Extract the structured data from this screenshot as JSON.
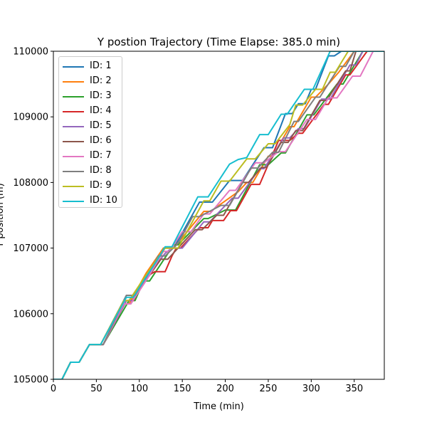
{
  "chart_data": {
    "type": "line",
    "title": "Y postion Trajectory (Time Elapse: 385.0 min)",
    "xlabel": "Time (min)",
    "ylabel": "Y position (m)",
    "xlim": [
      0,
      385
    ],
    "ylim": [
      105000,
      110000
    ],
    "xticks": [
      0,
      50,
      100,
      150,
      200,
      250,
      300,
      350
    ],
    "yticks": [
      105000,
      106000,
      107000,
      108000,
      109000,
      110000
    ],
    "grid": false,
    "legend_position": "upper-left",
    "series": [
      {
        "name": "ID: 1",
        "color": "#1f77b4",
        "points": [
          [
            0,
            105000
          ],
          [
            10,
            105000
          ],
          [
            20,
            105260
          ],
          [
            30,
            105260
          ],
          [
            42,
            105530
          ],
          [
            55,
            105530
          ],
          [
            85,
            106280
          ],
          [
            95,
            106280
          ],
          [
            110,
            106620
          ],
          [
            128,
            107000
          ],
          [
            140,
            107000
          ],
          [
            170,
            107700
          ],
          [
            185,
            107700
          ],
          [
            205,
            108030
          ],
          [
            220,
            108030
          ],
          [
            245,
            108530
          ],
          [
            255,
            108530
          ],
          [
            270,
            109050
          ],
          [
            278,
            109050
          ],
          [
            285,
            109200
          ],
          [
            293,
            109200
          ],
          [
            300,
            109420
          ],
          [
            305,
            109420
          ],
          [
            320,
            109930
          ],
          [
            327,
            109930
          ],
          [
            335,
            110000
          ],
          [
            385,
            110000
          ]
        ]
      },
      {
        "name": "ID: 2",
        "color": "#ff7f0e",
        "points": [
          [
            0,
            105000
          ],
          [
            10,
            105000
          ],
          [
            20,
            105260
          ],
          [
            30,
            105260
          ],
          [
            42,
            105530
          ],
          [
            55,
            105530
          ],
          [
            80,
            106150
          ],
          [
            88,
            106150
          ],
          [
            108,
            106620
          ],
          [
            128,
            107000
          ],
          [
            140,
            107000
          ],
          [
            175,
            107560
          ],
          [
            183,
            107560
          ],
          [
            215,
            107860
          ],
          [
            225,
            108000
          ],
          [
            232,
            108000
          ],
          [
            250,
            108400
          ],
          [
            255,
            108400
          ],
          [
            275,
            108850
          ],
          [
            280,
            108850
          ],
          [
            300,
            109300
          ],
          [
            305,
            109300
          ],
          [
            320,
            109500
          ],
          [
            332,
            109680
          ],
          [
            350,
            110000
          ],
          [
            385,
            110000
          ]
        ]
      },
      {
        "name": "ID: 3",
        "color": "#2ca02c",
        "points": [
          [
            0,
            105000
          ],
          [
            10,
            105000
          ],
          [
            20,
            105260
          ],
          [
            30,
            105260
          ],
          [
            42,
            105530
          ],
          [
            58,
            105530
          ],
          [
            88,
            106200
          ],
          [
            95,
            106200
          ],
          [
            105,
            106500
          ],
          [
            112,
            106500
          ],
          [
            140,
            107050
          ],
          [
            145,
            107050
          ],
          [
            175,
            107450
          ],
          [
            180,
            107450
          ],
          [
            200,
            107580
          ],
          [
            212,
            107580
          ],
          [
            240,
            108270
          ],
          [
            250,
            108270
          ],
          [
            265,
            108450
          ],
          [
            270,
            108450
          ],
          [
            295,
            109030
          ],
          [
            303,
            109030
          ],
          [
            330,
            109500
          ],
          [
            337,
            109500
          ],
          [
            360,
            110000
          ],
          [
            385,
            110000
          ]
        ]
      },
      {
        "name": "ID: 4",
        "color": "#d62728",
        "points": [
          [
            0,
            105000
          ],
          [
            10,
            105000
          ],
          [
            20,
            105260
          ],
          [
            30,
            105260
          ],
          [
            42,
            105530
          ],
          [
            58,
            105530
          ],
          [
            85,
            106200
          ],
          [
            93,
            106200
          ],
          [
            110,
            106580
          ],
          [
            118,
            106640
          ],
          [
            130,
            106640
          ],
          [
            138,
            106880
          ],
          [
            143,
            107000
          ],
          [
            148,
            107000
          ],
          [
            170,
            107310
          ],
          [
            180,
            107310
          ],
          [
            185,
            107420
          ],
          [
            198,
            107420
          ],
          [
            206,
            107570
          ],
          [
            213,
            107570
          ],
          [
            230,
            107970
          ],
          [
            240,
            107970
          ],
          [
            262,
            108640
          ],
          [
            275,
            108640
          ],
          [
            285,
            108750
          ],
          [
            290,
            108750
          ],
          [
            315,
            109190
          ],
          [
            320,
            109190
          ],
          [
            340,
            109640
          ],
          [
            345,
            109640
          ],
          [
            365,
            110000
          ],
          [
            385,
            110000
          ]
        ]
      },
      {
        "name": "ID: 5",
        "color": "#9467bd",
        "points": [
          [
            0,
            105000
          ],
          [
            10,
            105000
          ],
          [
            20,
            105260
          ],
          [
            30,
            105260
          ],
          [
            42,
            105530
          ],
          [
            58,
            105530
          ],
          [
            85,
            106200
          ],
          [
            92,
            106200
          ],
          [
            112,
            106620
          ],
          [
            130,
            106920
          ],
          [
            138,
            107000
          ],
          [
            150,
            107000
          ],
          [
            175,
            107400
          ],
          [
            182,
            107400
          ],
          [
            208,
            107760
          ],
          [
            215,
            107760
          ],
          [
            240,
            108210
          ],
          [
            245,
            108210
          ],
          [
            268,
            108680
          ],
          [
            275,
            108680
          ],
          [
            285,
            108820
          ],
          [
            292,
            108820
          ],
          [
            312,
            109270
          ],
          [
            322,
            109270
          ],
          [
            345,
            109790
          ],
          [
            352,
            109790
          ],
          [
            360,
            110000
          ],
          [
            385,
            110000
          ]
        ]
      },
      {
        "name": "ID: 6",
        "color": "#8c564b",
        "points": [
          [
            0,
            105000
          ],
          [
            10,
            105000
          ],
          [
            20,
            105260
          ],
          [
            30,
            105260
          ],
          [
            42,
            105530
          ],
          [
            58,
            105530
          ],
          [
            82,
            106150
          ],
          [
            90,
            106150
          ],
          [
            110,
            106550
          ],
          [
            125,
            106830
          ],
          [
            133,
            106830
          ],
          [
            155,
            107140
          ],
          [
            165,
            107280
          ],
          [
            173,
            107280
          ],
          [
            190,
            107500
          ],
          [
            198,
            107500
          ],
          [
            220,
            108000
          ],
          [
            227,
            108000
          ],
          [
            242,
            108230
          ],
          [
            248,
            108230
          ],
          [
            265,
            108610
          ],
          [
            273,
            108610
          ],
          [
            282,
            108790
          ],
          [
            290,
            108790
          ],
          [
            310,
            109250
          ],
          [
            318,
            109250
          ],
          [
            340,
            109700
          ],
          [
            345,
            109700
          ],
          [
            352,
            110000
          ],
          [
            385,
            110000
          ]
        ]
      },
      {
        "name": "ID: 7",
        "color": "#e377c2",
        "points": [
          [
            0,
            105000
          ],
          [
            10,
            105000
          ],
          [
            20,
            105260
          ],
          [
            30,
            105260
          ],
          [
            42,
            105530
          ],
          [
            58,
            105530
          ],
          [
            82,
            106150
          ],
          [
            90,
            106150
          ],
          [
            110,
            106550
          ],
          [
            128,
            106950
          ],
          [
            135,
            106950
          ],
          [
            150,
            107250
          ],
          [
            160,
            107250
          ],
          [
            175,
            107520
          ],
          [
            182,
            107520
          ],
          [
            205,
            107880
          ],
          [
            212,
            107880
          ],
          [
            235,
            108300
          ],
          [
            245,
            108300
          ],
          [
            262,
            108470
          ],
          [
            270,
            108470
          ],
          [
            295,
            108960
          ],
          [
            305,
            108960
          ],
          [
            320,
            109290
          ],
          [
            330,
            109290
          ],
          [
            348,
            109620
          ],
          [
            357,
            109620
          ],
          [
            372,
            110000
          ],
          [
            385,
            110000
          ]
        ]
      },
      {
        "name": "ID: 8",
        "color": "#7f7f7f",
        "points": [
          [
            0,
            105000
          ],
          [
            10,
            105000
          ],
          [
            20,
            105260
          ],
          [
            30,
            105260
          ],
          [
            42,
            105530
          ],
          [
            58,
            105530
          ],
          [
            85,
            106280
          ],
          [
            95,
            106280
          ],
          [
            110,
            106600
          ],
          [
            122,
            106880
          ],
          [
            130,
            106880
          ],
          [
            145,
            107070
          ],
          [
            162,
            107480
          ],
          [
            170,
            107480
          ],
          [
            195,
            107650
          ],
          [
            205,
            107650
          ],
          [
            230,
            108220
          ],
          [
            238,
            108220
          ],
          [
            255,
            108460
          ],
          [
            262,
            108460
          ],
          [
            280,
            108930
          ],
          [
            285,
            108930
          ],
          [
            305,
            109300
          ],
          [
            310,
            109300
          ],
          [
            333,
            109770
          ],
          [
            340,
            109770
          ],
          [
            350,
            110000
          ],
          [
            385,
            110000
          ]
        ]
      },
      {
        "name": "ID: 9",
        "color": "#bcbd22",
        "points": [
          [
            0,
            105000
          ],
          [
            10,
            105000
          ],
          [
            20,
            105260
          ],
          [
            30,
            105260
          ],
          [
            42,
            105530
          ],
          [
            55,
            105530
          ],
          [
            82,
            106200
          ],
          [
            88,
            106200
          ],
          [
            110,
            106630
          ],
          [
            130,
            107000
          ],
          [
            145,
            107000
          ],
          [
            175,
            107720
          ],
          [
            182,
            107720
          ],
          [
            195,
            108020
          ],
          [
            205,
            108020
          ],
          [
            225,
            108360
          ],
          [
            235,
            108360
          ],
          [
            250,
            108590
          ],
          [
            258,
            108590
          ],
          [
            275,
            108880
          ],
          [
            282,
            109180
          ],
          [
            290,
            109180
          ],
          [
            305,
            109420
          ],
          [
            313,
            109420
          ],
          [
            322,
            109680
          ],
          [
            328,
            109680
          ],
          [
            343,
            110000
          ],
          [
            385,
            110000
          ]
        ]
      },
      {
        "name": "ID: 10",
        "color": "#17becf",
        "points": [
          [
            0,
            105000
          ],
          [
            10,
            105000
          ],
          [
            20,
            105260
          ],
          [
            30,
            105260
          ],
          [
            42,
            105530
          ],
          [
            55,
            105530
          ],
          [
            85,
            106250
          ],
          [
            93,
            106250
          ],
          [
            105,
            106500
          ],
          [
            120,
            106800
          ],
          [
            130,
            107020
          ],
          [
            138,
            107020
          ],
          [
            168,
            107780
          ],
          [
            180,
            107780
          ],
          [
            205,
            108280
          ],
          [
            215,
            108350
          ],
          [
            225,
            108380
          ],
          [
            240,
            108730
          ],
          [
            250,
            108730
          ],
          [
            265,
            109040
          ],
          [
            272,
            109040
          ],
          [
            292,
            109420
          ],
          [
            302,
            109420
          ],
          [
            322,
            110000
          ],
          [
            385,
            110000
          ]
        ]
      }
    ]
  }
}
